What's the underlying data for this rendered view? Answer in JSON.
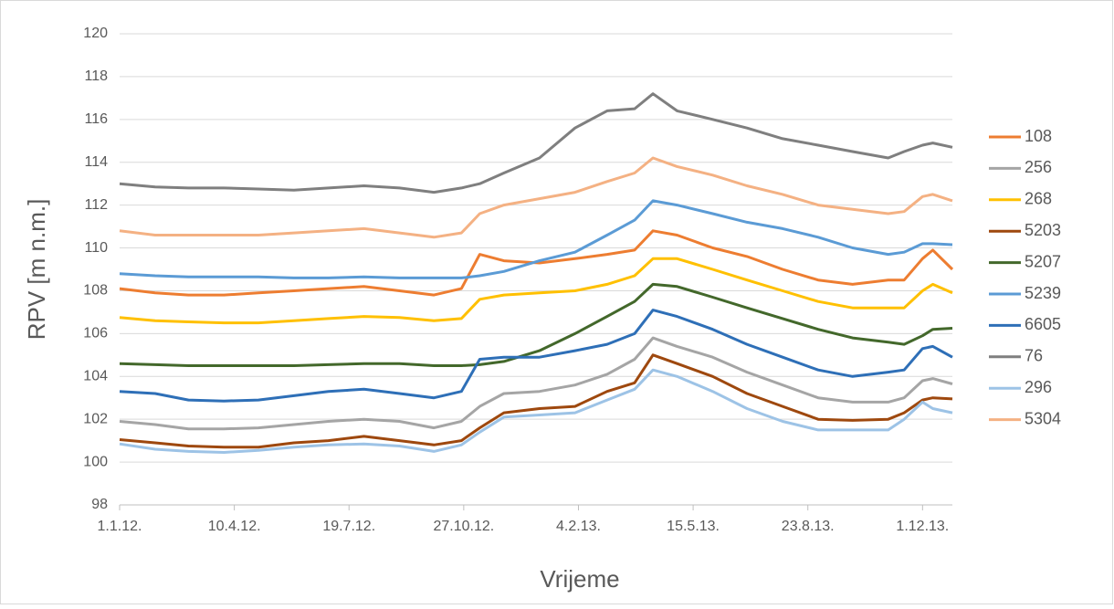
{
  "chart_data": {
    "type": "line",
    "y_label": "RPV [m n.m.]",
    "x_label": "Vrijeme",
    "x": [
      "2012-01-01",
      "2012-02-01",
      "2012-03-01",
      "2012-04-01",
      "2012-05-01",
      "2012-06-01",
      "2012-07-01",
      "2012-08-01",
      "2012-09-01",
      "2012-10-01",
      "2012-10-25",
      "2012-11-10",
      "2012-12-01",
      "2013-01-01",
      "2013-02-01",
      "2013-03-01",
      "2013-03-25",
      "2013-04-10",
      "2013-05-01",
      "2013-06-01",
      "2013-07-01",
      "2013-08-01",
      "2013-09-01",
      "2013-10-01",
      "2013-11-01",
      "2013-11-15",
      "2013-12-01",
      "2013-12-10",
      "2013-12-27"
    ],
    "series": [
      {
        "name": "108",
        "color": "#ed7d31",
        "values": [
          108.1,
          107.9,
          107.8,
          107.8,
          107.9,
          108.0,
          108.1,
          108.2,
          108.0,
          107.8,
          108.1,
          109.7,
          109.4,
          109.3,
          109.5,
          109.7,
          109.9,
          110.8,
          110.6,
          110.0,
          109.6,
          109.0,
          108.5,
          108.3,
          108.5,
          108.5,
          109.5,
          109.9,
          109.0
        ]
      },
      {
        "name": "256",
        "color": "#a5a5a5",
        "values": [
          101.9,
          101.75,
          101.55,
          101.55,
          101.6,
          101.75,
          101.9,
          102.0,
          101.9,
          101.6,
          101.9,
          102.6,
          103.2,
          103.3,
          103.6,
          104.1,
          104.8,
          105.8,
          105.4,
          104.9,
          104.2,
          103.6,
          103.0,
          102.8,
          102.8,
          103.0,
          103.8,
          103.9,
          103.65
        ]
      },
      {
        "name": "268",
        "color": "#ffc000",
        "values": [
          106.75,
          106.6,
          106.55,
          106.5,
          106.5,
          106.6,
          106.7,
          106.8,
          106.75,
          106.6,
          106.7,
          107.6,
          107.8,
          107.9,
          108.0,
          108.3,
          108.7,
          109.5,
          109.5,
          109.0,
          108.5,
          108.0,
          107.5,
          107.2,
          107.2,
          107.2,
          108.0,
          108.3,
          107.9
        ]
      },
      {
        "name": "5203",
        "color": "#9e480e",
        "values": [
          101.05,
          100.9,
          100.75,
          100.7,
          100.7,
          100.9,
          101.0,
          101.2,
          101.0,
          100.8,
          101.0,
          101.6,
          102.3,
          102.5,
          102.6,
          103.3,
          103.7,
          105.0,
          104.6,
          104.0,
          103.2,
          102.6,
          102.0,
          101.95,
          102.0,
          102.3,
          102.9,
          103.0,
          102.95
        ]
      },
      {
        "name": "5207",
        "color": "#43682b",
        "values": [
          104.6,
          104.55,
          104.5,
          104.5,
          104.5,
          104.5,
          104.55,
          104.6,
          104.6,
          104.5,
          104.5,
          104.55,
          104.7,
          105.2,
          106.0,
          106.8,
          107.5,
          108.3,
          108.2,
          107.7,
          107.2,
          106.7,
          106.2,
          105.8,
          105.6,
          105.5,
          105.9,
          106.2,
          106.25
        ]
      },
      {
        "name": "5239",
        "color": "#5b9bd5",
        "values": [
          108.8,
          108.7,
          108.65,
          108.65,
          108.65,
          108.6,
          108.6,
          108.65,
          108.6,
          108.6,
          108.6,
          108.7,
          108.9,
          109.4,
          109.8,
          110.6,
          111.3,
          112.2,
          112.0,
          111.6,
          111.2,
          110.9,
          110.5,
          110.0,
          109.7,
          109.8,
          110.2,
          110.2,
          110.15
        ]
      },
      {
        "name": "6605",
        "color": "#2e6fb7",
        "values": [
          103.3,
          103.2,
          102.9,
          102.85,
          102.9,
          103.1,
          103.3,
          103.4,
          103.2,
          103.0,
          103.3,
          104.8,
          104.9,
          104.9,
          105.2,
          105.5,
          106.0,
          107.1,
          106.8,
          106.2,
          105.5,
          104.9,
          104.3,
          104.0,
          104.2,
          104.3,
          105.3,
          105.4,
          104.9
        ]
      },
      {
        "name": "76",
        "color": "#7f7f7f",
        "values": [
          113.0,
          112.85,
          112.8,
          112.8,
          112.75,
          112.7,
          112.8,
          112.9,
          112.8,
          112.6,
          112.8,
          113.0,
          113.5,
          114.2,
          115.6,
          116.4,
          116.5,
          117.2,
          116.4,
          116.0,
          115.6,
          115.1,
          114.8,
          114.5,
          114.2,
          114.5,
          114.8,
          114.9,
          114.7
        ]
      },
      {
        "name": "296",
        "color": "#9dc3e6",
        "values": [
          100.85,
          100.6,
          100.5,
          100.45,
          100.55,
          100.7,
          100.8,
          100.85,
          100.75,
          100.5,
          100.8,
          101.4,
          102.1,
          102.2,
          102.3,
          102.9,
          103.4,
          104.3,
          104.0,
          103.3,
          102.5,
          101.9,
          101.5,
          101.5,
          101.5,
          102.0,
          102.8,
          102.5,
          102.3
        ]
      },
      {
        "name": "5304",
        "color": "#f4b183",
        "values": [
          110.8,
          110.6,
          110.6,
          110.6,
          110.6,
          110.7,
          110.8,
          110.9,
          110.7,
          110.5,
          110.7,
          111.6,
          112.0,
          112.3,
          112.6,
          113.1,
          113.5,
          114.2,
          113.8,
          113.4,
          112.9,
          112.5,
          112.0,
          111.8,
          111.6,
          111.7,
          112.4,
          112.5,
          112.2
        ]
      }
    ],
    "xlim": [
      "2012-01-01",
      "2013-12-27"
    ],
    "xticks": [
      {
        "value": "2012-01-01",
        "label": "1.1.12."
      },
      {
        "value": "2012-04-10",
        "label": "10.4.12."
      },
      {
        "value": "2012-07-19",
        "label": "19.7.12."
      },
      {
        "value": "2012-10-27",
        "label": "27.10.12."
      },
      {
        "value": "2013-02-04",
        "label": "4.2.13."
      },
      {
        "value": "2013-05-15",
        "label": "15.5.13."
      },
      {
        "value": "2013-08-23",
        "label": "23.8.13."
      },
      {
        "value": "2013-12-01",
        "label": "1.12.13."
      }
    ],
    "ylim": [
      98,
      120
    ],
    "yticks": [
      98,
      100,
      102,
      104,
      106,
      108,
      110,
      112,
      114,
      116,
      118,
      120
    ],
    "grid": true,
    "legend": "right"
  }
}
